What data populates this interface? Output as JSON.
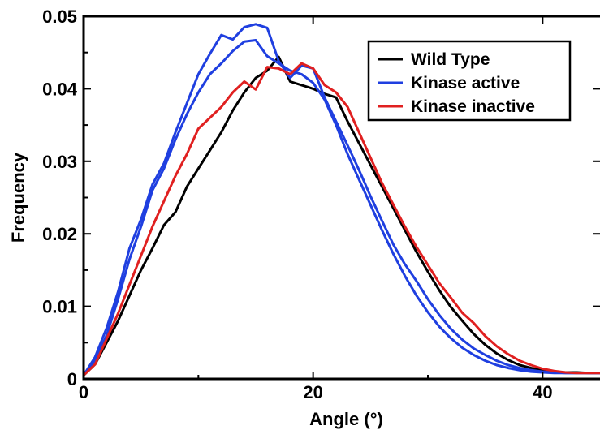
{
  "chart_data": {
    "type": "line",
    "title": "",
    "xlabel": "Angle (°)",
    "ylabel": "Frequency",
    "xlim": [
      0,
      45
    ],
    "ylim": [
      0,
      0.05
    ],
    "xticks": [
      0,
      20,
      40
    ],
    "xtick_labels": [
      "0",
      "20",
      "40"
    ],
    "yticks": [
      0,
      0.01,
      0.02,
      0.03,
      0.04,
      0.05
    ],
    "ytick_labels": [
      "0",
      "0.01",
      "0.02",
      "0.03",
      "0.04",
      "0.05"
    ],
    "grid": false,
    "legend_position": "top-right",
    "x": [
      0,
      1,
      2,
      3,
      4,
      5,
      6,
      7,
      8,
      9,
      10,
      11,
      12,
      13,
      14,
      15,
      16,
      17,
      18,
      19,
      20,
      21,
      22,
      23,
      24,
      25,
      26,
      27,
      28,
      29,
      30,
      31,
      32,
      33,
      34,
      35,
      36,
      37,
      38,
      39,
      40,
      41,
      42,
      43,
      44,
      45
    ],
    "series": [
      {
        "name": "Wild Type",
        "color": "#000000",
        "values": [
          0.0005,
          0.002,
          0.005,
          0.008,
          0.0115,
          0.015,
          0.018,
          0.0212,
          0.023,
          0.0265,
          0.029,
          0.0315,
          0.034,
          0.037,
          0.0395,
          0.0415,
          0.0425,
          0.0444,
          0.041,
          0.0405,
          0.04,
          0.0393,
          0.0388,
          0.0355,
          0.0325,
          0.0295,
          0.0265,
          0.0235,
          0.0205,
          0.0175,
          0.0148,
          0.0122,
          0.0099,
          0.008,
          0.0062,
          0.0047,
          0.0035,
          0.0026,
          0.0019,
          0.0015,
          0.0012,
          0.001,
          0.0009,
          0.0009,
          0.0008,
          0.0008
        ]
      },
      {
        "name": "Kinase active",
        "color": "#1f3fe0",
        "values": [
          0.0005,
          0.0025,
          0.006,
          0.011,
          0.0165,
          0.021,
          0.026,
          0.029,
          0.033,
          0.0365,
          0.0395,
          0.042,
          0.0435,
          0.0452,
          0.0465,
          0.0467,
          0.0445,
          0.0435,
          0.0425,
          0.042,
          0.0408,
          0.0385,
          0.035,
          0.031,
          0.0275,
          0.024,
          0.0205,
          0.0172,
          0.0142,
          0.0115,
          0.0092,
          0.0072,
          0.0056,
          0.0043,
          0.0033,
          0.0025,
          0.0019,
          0.0015,
          0.0012,
          0.001,
          0.0009,
          0.0008,
          0.0008,
          0.0008,
          0.0008,
          0.0008
        ]
      },
      {
        "name": "Kinase active",
        "color": "#1f3fe0",
        "values": [
          0.0005,
          0.003,
          0.007,
          0.012,
          0.018,
          0.022,
          0.0268,
          0.0297,
          0.034,
          0.038,
          0.042,
          0.0448,
          0.0474,
          0.0468,
          0.0485,
          0.0489,
          0.0484,
          0.0438,
          0.0415,
          0.0432,
          0.0428,
          0.0388,
          0.0355,
          0.0322,
          0.0288,
          0.0252,
          0.0218,
          0.0185,
          0.0158,
          0.0135,
          0.011,
          0.0088,
          0.0069,
          0.0054,
          0.0042,
          0.0033,
          0.0025,
          0.0019,
          0.0015,
          0.0012,
          0.001,
          0.0009,
          0.0008,
          0.0008,
          0.0008,
          0.0008
        ]
      },
      {
        "name": "Kinase inactive",
        "color": "#e02020",
        "values": [
          0.0005,
          0.002,
          0.0055,
          0.009,
          0.013,
          0.017,
          0.021,
          0.0245,
          0.028,
          0.031,
          0.0345,
          0.036,
          0.0375,
          0.0395,
          0.041,
          0.0399,
          0.043,
          0.0428,
          0.042,
          0.0435,
          0.0428,
          0.0405,
          0.0395,
          0.0375,
          0.034,
          0.0305,
          0.027,
          0.024,
          0.021,
          0.0182,
          0.0157,
          0.0132,
          0.0112,
          0.0091,
          0.0077,
          0.0059,
          0.0045,
          0.0034,
          0.0025,
          0.0019,
          0.0014,
          0.0011,
          0.0009,
          0.0008,
          0.0008,
          0.0008
        ]
      }
    ],
    "legend": [
      {
        "label": "Wild Type",
        "color": "#000000"
      },
      {
        "label": "Kinase active",
        "color": "#1f3fe0"
      },
      {
        "label": "Kinase inactive",
        "color": "#e02020"
      }
    ]
  }
}
